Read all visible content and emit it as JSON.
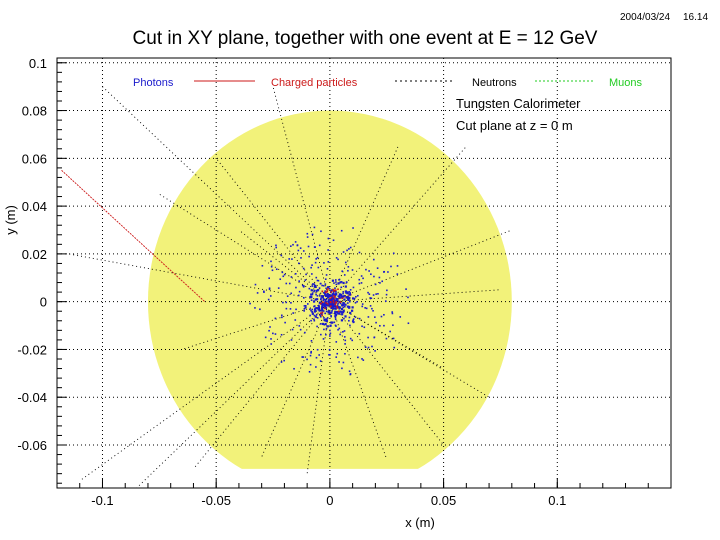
{
  "header": {
    "date": "2004/03/24",
    "time": "16.14"
  },
  "chart_data": {
    "type": "scatter",
    "title": "Cut in XY plane, together with one event at E = 12 GeV",
    "xlabel": "x (m)",
    "ylabel": "y (m)",
    "xlim": [
      -0.12,
      0.15
    ],
    "ylim": [
      -0.078,
      0.102
    ],
    "xticks": [
      -0.1,
      -0.05,
      0,
      0.05,
      0.1
    ],
    "xtick_labels": [
      "-0.1",
      "-0.05",
      "0",
      "0.05",
      "0.1"
    ],
    "yticks": [
      0.1,
      0.08,
      0.06,
      0.04,
      0.02,
      0,
      -0.02,
      -0.04,
      -0.06
    ],
    "ytick_labels": [
      "0.1",
      "0.08",
      "0.06",
      "0.04",
      "0.02",
      "0",
      "-0.02",
      "-0.04",
      "-0.06"
    ],
    "grid": true,
    "legend": [
      {
        "label": "Photons",
        "color": "#1a1acc"
      },
      {
        "label": "Charged particles",
        "color": "#cc1a1a"
      },
      {
        "label": "Neutrons",
        "color": "#000000"
      },
      {
        "label": "Muons",
        "color": "#22cc22"
      }
    ],
    "annotations": [
      "Tungsten Calorimeter",
      "Cut plane at z = 0 m"
    ],
    "calorimeter": {
      "shape": "disk",
      "center": [
        0,
        0
      ],
      "radius": 0.08,
      "clip_ymin": -0.07,
      "color": "#f2f27a"
    },
    "core": {
      "center": [
        0,
        0
      ],
      "radius": 0.015,
      "color": "#1a1acc"
    },
    "charged_tracks": [
      [
        [
          -0.118,
          0.055
        ],
        [
          -0.078,
          0.02
        ],
        [
          -0.055,
          0.0
        ]
      ],
      [
        [
          0,
          0
        ],
        [
          0.01,
          0.003
        ]
      ]
    ],
    "neutral_tracks": [
      [
        [
          0,
          0
        ],
        [
          -0.1,
          0.09
        ]
      ],
      [
        [
          0,
          0
        ],
        [
          -0.075,
          0.045
        ]
      ],
      [
        [
          0,
          0
        ],
        [
          -0.115,
          0.02
        ]
      ],
      [
        [
          0,
          0
        ],
        [
          -0.11,
          -0.075
        ]
      ],
      [
        [
          0,
          0
        ],
        [
          -0.085,
          -0.078
        ]
      ],
      [
        [
          0,
          0
        ],
        [
          -0.06,
          -0.07
        ]
      ],
      [
        [
          0,
          0
        ],
        [
          -0.03,
          -0.065
        ]
      ],
      [
        [
          0,
          0
        ],
        [
          -0.01,
          -0.072
        ]
      ],
      [
        [
          0,
          0
        ],
        [
          0.025,
          -0.066
        ]
      ],
      [
        [
          0,
          0
        ],
        [
          0.05,
          -0.06
        ]
      ],
      [
        [
          0,
          0
        ],
        [
          0.07,
          -0.04
        ]
      ],
      [
        [
          0,
          0
        ],
        [
          0.075,
          0.005
        ]
      ],
      [
        [
          0,
          0
        ],
        [
          0.06,
          0.065
        ]
      ],
      [
        [
          0,
          0
        ],
        [
          0.03,
          0.065
        ]
      ],
      [
        [
          0,
          0
        ],
        [
          -0.025,
          0.09
        ]
      ],
      [
        [
          0,
          0
        ],
        [
          -0.05,
          0.06
        ]
      ],
      [
        [
          0,
          0
        ],
        [
          0.08,
          0.03
        ]
      ],
      [
        [
          0,
          0
        ],
        [
          -0.065,
          -0.02
        ]
      ],
      [
        [
          0,
          0
        ],
        [
          0.05,
          -0.028
        ]
      ],
      [
        [
          0,
          0
        ],
        [
          -0.04,
          0.03
        ]
      ]
    ]
  }
}
